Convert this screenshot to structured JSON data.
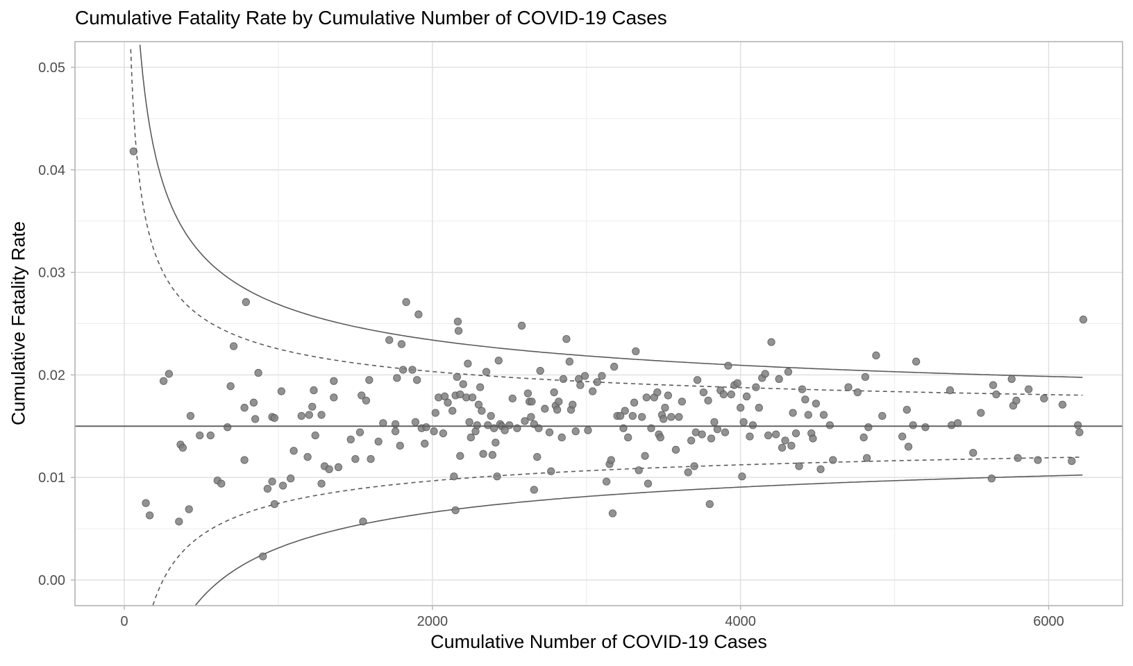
{
  "chart_data": {
    "type": "scatter",
    "title": "Cumulative Fatality Rate by Cumulative Number of COVID-19 Cases",
    "xlabel": "Cumulative Number of COVID-19 Cases",
    "ylabel": "Cumulative Fatality Rate",
    "xlim": [
      -320,
      6480
    ],
    "ylim": [
      -0.0025,
      0.0525
    ],
    "x_ticks": [
      0,
      2000,
      4000,
      6000
    ],
    "x_tick_labels": [
      "0",
      "2000",
      "4000",
      "6000"
    ],
    "y_ticks": [
      0.0,
      0.01,
      0.02,
      0.03,
      0.04,
      0.05
    ],
    "y_tick_labels": [
      "0.00",
      "0.01",
      "0.02",
      "0.03",
      "0.04",
      "0.05"
    ],
    "grid": true,
    "legend": "none",
    "reference_line": {
      "name": "overall-rate",
      "value": 0.015,
      "style": "solid"
    },
    "control_limits": [
      {
        "name": "95% limits",
        "z": 1.96,
        "style": "dashed"
      },
      {
        "name": "99.8% limits",
        "z": 3.09,
        "style": "solid"
      }
    ],
    "limit_x_range": [
      20,
      6220
    ],
    "point_color": "#7f7f7f",
    "line_color": "#595959",
    "points": [
      [
        60,
        0.0418
      ],
      [
        140,
        0.0075
      ],
      [
        165,
        0.0063
      ],
      [
        255,
        0.0194
      ],
      [
        290,
        0.0201
      ],
      [
        355,
        0.0057
      ],
      [
        365,
        0.0132
      ],
      [
        380,
        0.0129
      ],
      [
        420,
        0.0069
      ],
      [
        430,
        0.016
      ],
      [
        490,
        0.0141
      ],
      [
        560,
        0.0141
      ],
      [
        605,
        0.0097
      ],
      [
        630,
        0.0094
      ],
      [
        670,
        0.0149
      ],
      [
        690,
        0.0189
      ],
      [
        710,
        0.0228
      ],
      [
        780,
        0.0117
      ],
      [
        780,
        0.0168
      ],
      [
        790,
        0.0271
      ],
      [
        840,
        0.0173
      ],
      [
        850,
        0.0157
      ],
      [
        870,
        0.0202
      ],
      [
        900,
        0.0023
      ],
      [
        930,
        0.0089
      ],
      [
        960,
        0.0096
      ],
      [
        960,
        0.0159
      ],
      [
        975,
        0.0158
      ],
      [
        975,
        0.0074
      ],
      [
        1020,
        0.0184
      ],
      [
        1030,
        0.0092
      ],
      [
        1080,
        0.0099
      ],
      [
        1100,
        0.0126
      ],
      [
        1150,
        0.016
      ],
      [
        1190,
        0.012
      ],
      [
        1200,
        0.0161
      ],
      [
        1220,
        0.0169
      ],
      [
        1230,
        0.0185
      ],
      [
        1240,
        0.0141
      ],
      [
        1280,
        0.0161
      ],
      [
        1280,
        0.0094
      ],
      [
        1300,
        0.0111
      ],
      [
        1330,
        0.0108
      ],
      [
        1360,
        0.0194
      ],
      [
        1360,
        0.0178
      ],
      [
        1390,
        0.011
      ],
      [
        1470,
        0.0137
      ],
      [
        1500,
        0.0118
      ],
      [
        1530,
        0.0144
      ],
      [
        1540,
        0.018
      ],
      [
        1550,
        0.0057
      ],
      [
        1570,
        0.0175
      ],
      [
        1590,
        0.0195
      ],
      [
        1600,
        0.0118
      ],
      [
        1650,
        0.0135
      ],
      [
        1680,
        0.0153
      ],
      [
        1720,
        0.0234
      ],
      [
        1760,
        0.0152
      ],
      [
        1760,
        0.0145
      ],
      [
        1770,
        0.0197
      ],
      [
        1790,
        0.0131
      ],
      [
        1800,
        0.023
      ],
      [
        1810,
        0.0205
      ],
      [
        1830,
        0.0271
      ],
      [
        1870,
        0.0205
      ],
      [
        1890,
        0.0154
      ],
      [
        1900,
        0.0195
      ],
      [
        1910,
        0.0259
      ],
      [
        1930,
        0.0148
      ],
      [
        1950,
        0.0133
      ],
      [
        1960,
        0.0149
      ],
      [
        2010,
        0.0145
      ],
      [
        2020,
        0.0163
      ],
      [
        2040,
        0.0178
      ],
      [
        2070,
        0.0143
      ],
      [
        2080,
        0.0179
      ],
      [
        2100,
        0.0173
      ],
      [
        2130,
        0.0165
      ],
      [
        2140,
        0.0101
      ],
      [
        2150,
        0.0068
      ],
      [
        2150,
        0.018
      ],
      [
        2160,
        0.0198
      ],
      [
        2165,
        0.0252
      ],
      [
        2170,
        0.0243
      ],
      [
        2180,
        0.0121
      ],
      [
        2180,
        0.0181
      ],
      [
        2200,
        0.0191
      ],
      [
        2220,
        0.0178
      ],
      [
        2230,
        0.0211
      ],
      [
        2240,
        0.0154
      ],
      [
        2250,
        0.0139
      ],
      [
        2260,
        0.0178
      ],
      [
        2280,
        0.0145
      ],
      [
        2290,
        0.0151
      ],
      [
        2300,
        0.0171
      ],
      [
        2310,
        0.0188
      ],
      [
        2320,
        0.0165
      ],
      [
        2330,
        0.0123
      ],
      [
        2350,
        0.0203
      ],
      [
        2360,
        0.0151
      ],
      [
        2380,
        0.016
      ],
      [
        2390,
        0.0122
      ],
      [
        2400,
        0.0148
      ],
      [
        2410,
        0.0134
      ],
      [
        2420,
        0.0101
      ],
      [
        2430,
        0.0214
      ],
      [
        2440,
        0.0152
      ],
      [
        2450,
        0.015
      ],
      [
        2470,
        0.0146
      ],
      [
        2500,
        0.0151
      ],
      [
        2520,
        0.0177
      ],
      [
        2550,
        0.0148
      ],
      [
        2580,
        0.0248
      ],
      [
        2600,
        0.0155
      ],
      [
        2620,
        0.0182
      ],
      [
        2630,
        0.0174
      ],
      [
        2640,
        0.0159
      ],
      [
        2645,
        0.0174
      ],
      [
        2660,
        0.0088
      ],
      [
        2660,
        0.0152
      ],
      [
        2680,
        0.012
      ],
      [
        2690,
        0.0148
      ],
      [
        2700,
        0.0204
      ],
      [
        2730,
        0.0167
      ],
      [
        2760,
        0.0144
      ],
      [
        2770,
        0.0106
      ],
      [
        2790,
        0.0183
      ],
      [
        2800,
        0.017
      ],
      [
        2810,
        0.0166
      ],
      [
        2820,
        0.0174
      ],
      [
        2840,
        0.0139
      ],
      [
        2850,
        0.0196
      ],
      [
        2870,
        0.0235
      ],
      [
        2890,
        0.0213
      ],
      [
        2900,
        0.0166
      ],
      [
        2910,
        0.0171
      ],
      [
        2930,
        0.0145
      ],
      [
        2950,
        0.0196
      ],
      [
        2960,
        0.019
      ],
      [
        2990,
        0.0199
      ],
      [
        3010,
        0.0146
      ],
      [
        3040,
        0.0184
      ],
      [
        3070,
        0.0193
      ],
      [
        3100,
        0.0199
      ],
      [
        3130,
        0.0096
      ],
      [
        3150,
        0.0113
      ],
      [
        3160,
        0.0117
      ],
      [
        3170,
        0.0065
      ],
      [
        3180,
        0.0208
      ],
      [
        3200,
        0.016
      ],
      [
        3220,
        0.016
      ],
      [
        3240,
        0.0148
      ],
      [
        3250,
        0.0165
      ],
      [
        3270,
        0.0139
      ],
      [
        3300,
        0.016
      ],
      [
        3310,
        0.0173
      ],
      [
        3320,
        0.0223
      ],
      [
        3340,
        0.0107
      ],
      [
        3360,
        0.0159
      ],
      [
        3380,
        0.0121
      ],
      [
        3390,
        0.0178
      ],
      [
        3400,
        0.0094
      ],
      [
        3420,
        0.0148
      ],
      [
        3440,
        0.0178
      ],
      [
        3460,
        0.0183
      ],
      [
        3470,
        0.0142
      ],
      [
        3480,
        0.0139
      ],
      [
        3490,
        0.0161
      ],
      [
        3500,
        0.0157
      ],
      [
        3510,
        0.0168
      ],
      [
        3530,
        0.018
      ],
      [
        3550,
        0.0159
      ],
      [
        3580,
        0.0127
      ],
      [
        3600,
        0.0159
      ],
      [
        3620,
        0.0174
      ],
      [
        3660,
        0.0105
      ],
      [
        3680,
        0.0136
      ],
      [
        3700,
        0.0111
      ],
      [
        3710,
        0.0144
      ],
      [
        3720,
        0.0195
      ],
      [
        3750,
        0.0142
      ],
      [
        3760,
        0.0183
      ],
      [
        3790,
        0.0175
      ],
      [
        3800,
        0.0074
      ],
      [
        3810,
        0.0138
      ],
      [
        3830,
        0.0154
      ],
      [
        3850,
        0.0147
      ],
      [
        3870,
        0.0185
      ],
      [
        3890,
        0.0181
      ],
      [
        3900,
        0.0144
      ],
      [
        3920,
        0.0209
      ],
      [
        3940,
        0.0181
      ],
      [
        3960,
        0.019
      ],
      [
        3980,
        0.0192
      ],
      [
        4000,
        0.0168
      ],
      [
        4010,
        0.0101
      ],
      [
        4020,
        0.0154
      ],
      [
        4040,
        0.0179
      ],
      [
        4060,
        0.014
      ],
      [
        4080,
        0.0151
      ],
      [
        4100,
        0.0188
      ],
      [
        4120,
        0.0168
      ],
      [
        4140,
        0.0197
      ],
      [
        4160,
        0.0201
      ],
      [
        4180,
        0.0141
      ],
      [
        4200,
        0.0232
      ],
      [
        4230,
        0.0142
      ],
      [
        4250,
        0.0196
      ],
      [
        4270,
        0.0129
      ],
      [
        4290,
        0.0136
      ],
      [
        4310,
        0.0203
      ],
      [
        4330,
        0.0131
      ],
      [
        4340,
        0.0163
      ],
      [
        4360,
        0.0143
      ],
      [
        4380,
        0.0111
      ],
      [
        4400,
        0.0186
      ],
      [
        4420,
        0.0176
      ],
      [
        4440,
        0.0161
      ],
      [
        4460,
        0.0143
      ],
      [
        4470,
        0.0138
      ],
      [
        4490,
        0.0172
      ],
      [
        4520,
        0.0108
      ],
      [
        4540,
        0.0161
      ],
      [
        4580,
        0.0151
      ],
      [
        4600,
        0.0117
      ],
      [
        4700,
        0.0188
      ],
      [
        4760,
        0.0183
      ],
      [
        4800,
        0.0139
      ],
      [
        4810,
        0.0198
      ],
      [
        4820,
        0.0119
      ],
      [
        4830,
        0.0149
      ],
      [
        4880,
        0.0219
      ],
      [
        4920,
        0.016
      ],
      [
        5050,
        0.014
      ],
      [
        5080,
        0.0166
      ],
      [
        5090,
        0.013
      ],
      [
        5120,
        0.0151
      ],
      [
        5140,
        0.0213
      ],
      [
        5200,
        0.0149
      ],
      [
        5360,
        0.0185
      ],
      [
        5370,
        0.0151
      ],
      [
        5410,
        0.0153
      ],
      [
        5510,
        0.0124
      ],
      [
        5560,
        0.0163
      ],
      [
        5630,
        0.0099
      ],
      [
        5640,
        0.019
      ],
      [
        5660,
        0.0181
      ],
      [
        5760,
        0.0196
      ],
      [
        5770,
        0.017
      ],
      [
        5790,
        0.0175
      ],
      [
        5800,
        0.0119
      ],
      [
        5870,
        0.0186
      ],
      [
        5930,
        0.0117
      ],
      [
        5970,
        0.0177
      ],
      [
        6090,
        0.0171
      ],
      [
        6150,
        0.0116
      ],
      [
        6190,
        0.0151
      ],
      [
        6200,
        0.0144
      ],
      [
        6225,
        0.0254
      ]
    ]
  }
}
